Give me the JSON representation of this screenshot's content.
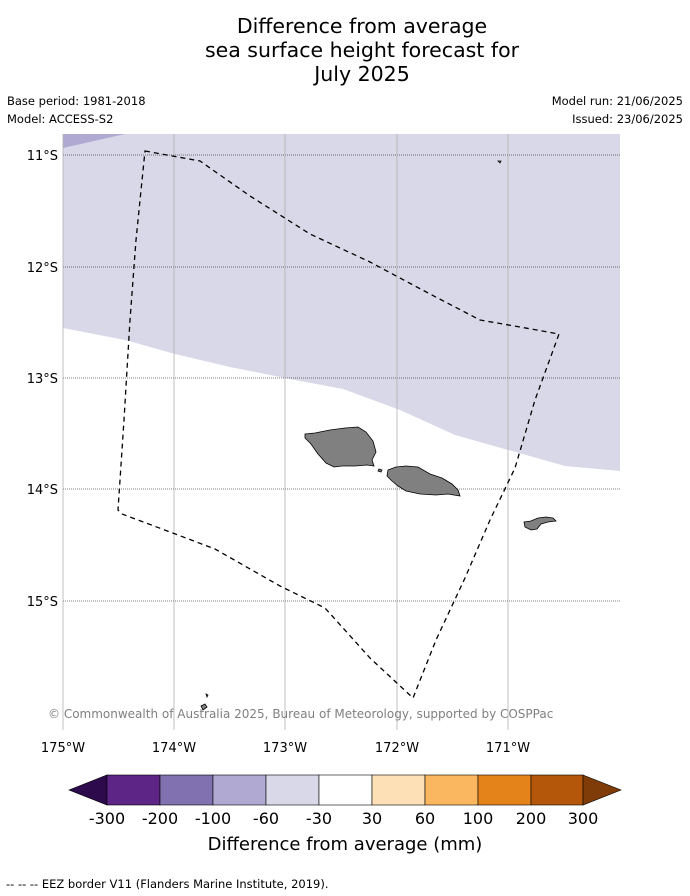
{
  "title": {
    "line1": "Difference from average",
    "line2": "sea surface height forecast for",
    "line3": "July 2025"
  },
  "meta": {
    "base_period": "Base period: 1981-2018",
    "model": "Model: ACCESS-S2",
    "model_run": "Model run: 21/06/2025",
    "issued": "Issued: 23/06/2025"
  },
  "map": {
    "lat_labels": [
      "11°S",
      "12°S",
      "13°S",
      "14°S",
      "15°S"
    ],
    "lon_labels": [
      "175°W",
      "174°W",
      "173°W",
      "172°W",
      "171°W"
    ],
    "colors": {
      "anomaly_band": "#d8d8e9",
      "anomaly_corner": "#b0a9d1",
      "land": "#808080",
      "gridline": "#b0b0b0"
    },
    "copyright": "© Commonwealth of Australia 2025, Bureau of Meteorology, supported by COSPPac"
  },
  "colorbar": {
    "title": "Difference from average (mm)",
    "labels": [
      "-300",
      "-200",
      "-100",
      "-60",
      "-30",
      "30",
      "60",
      "100",
      "200",
      "300"
    ],
    "colors": [
      "#2c0a4b",
      "#5c2586",
      "#8171b0",
      "#b0a9d1",
      "#d8d8e9",
      "#ffffff",
      "#fde0b6",
      "#fbb660",
      "#e4831a",
      "#b4570a",
      "#7f3b08"
    ]
  },
  "footer": {
    "legend": "--  --  -- EEZ border V11 (Flanders Marine Institute, 2019)."
  }
}
